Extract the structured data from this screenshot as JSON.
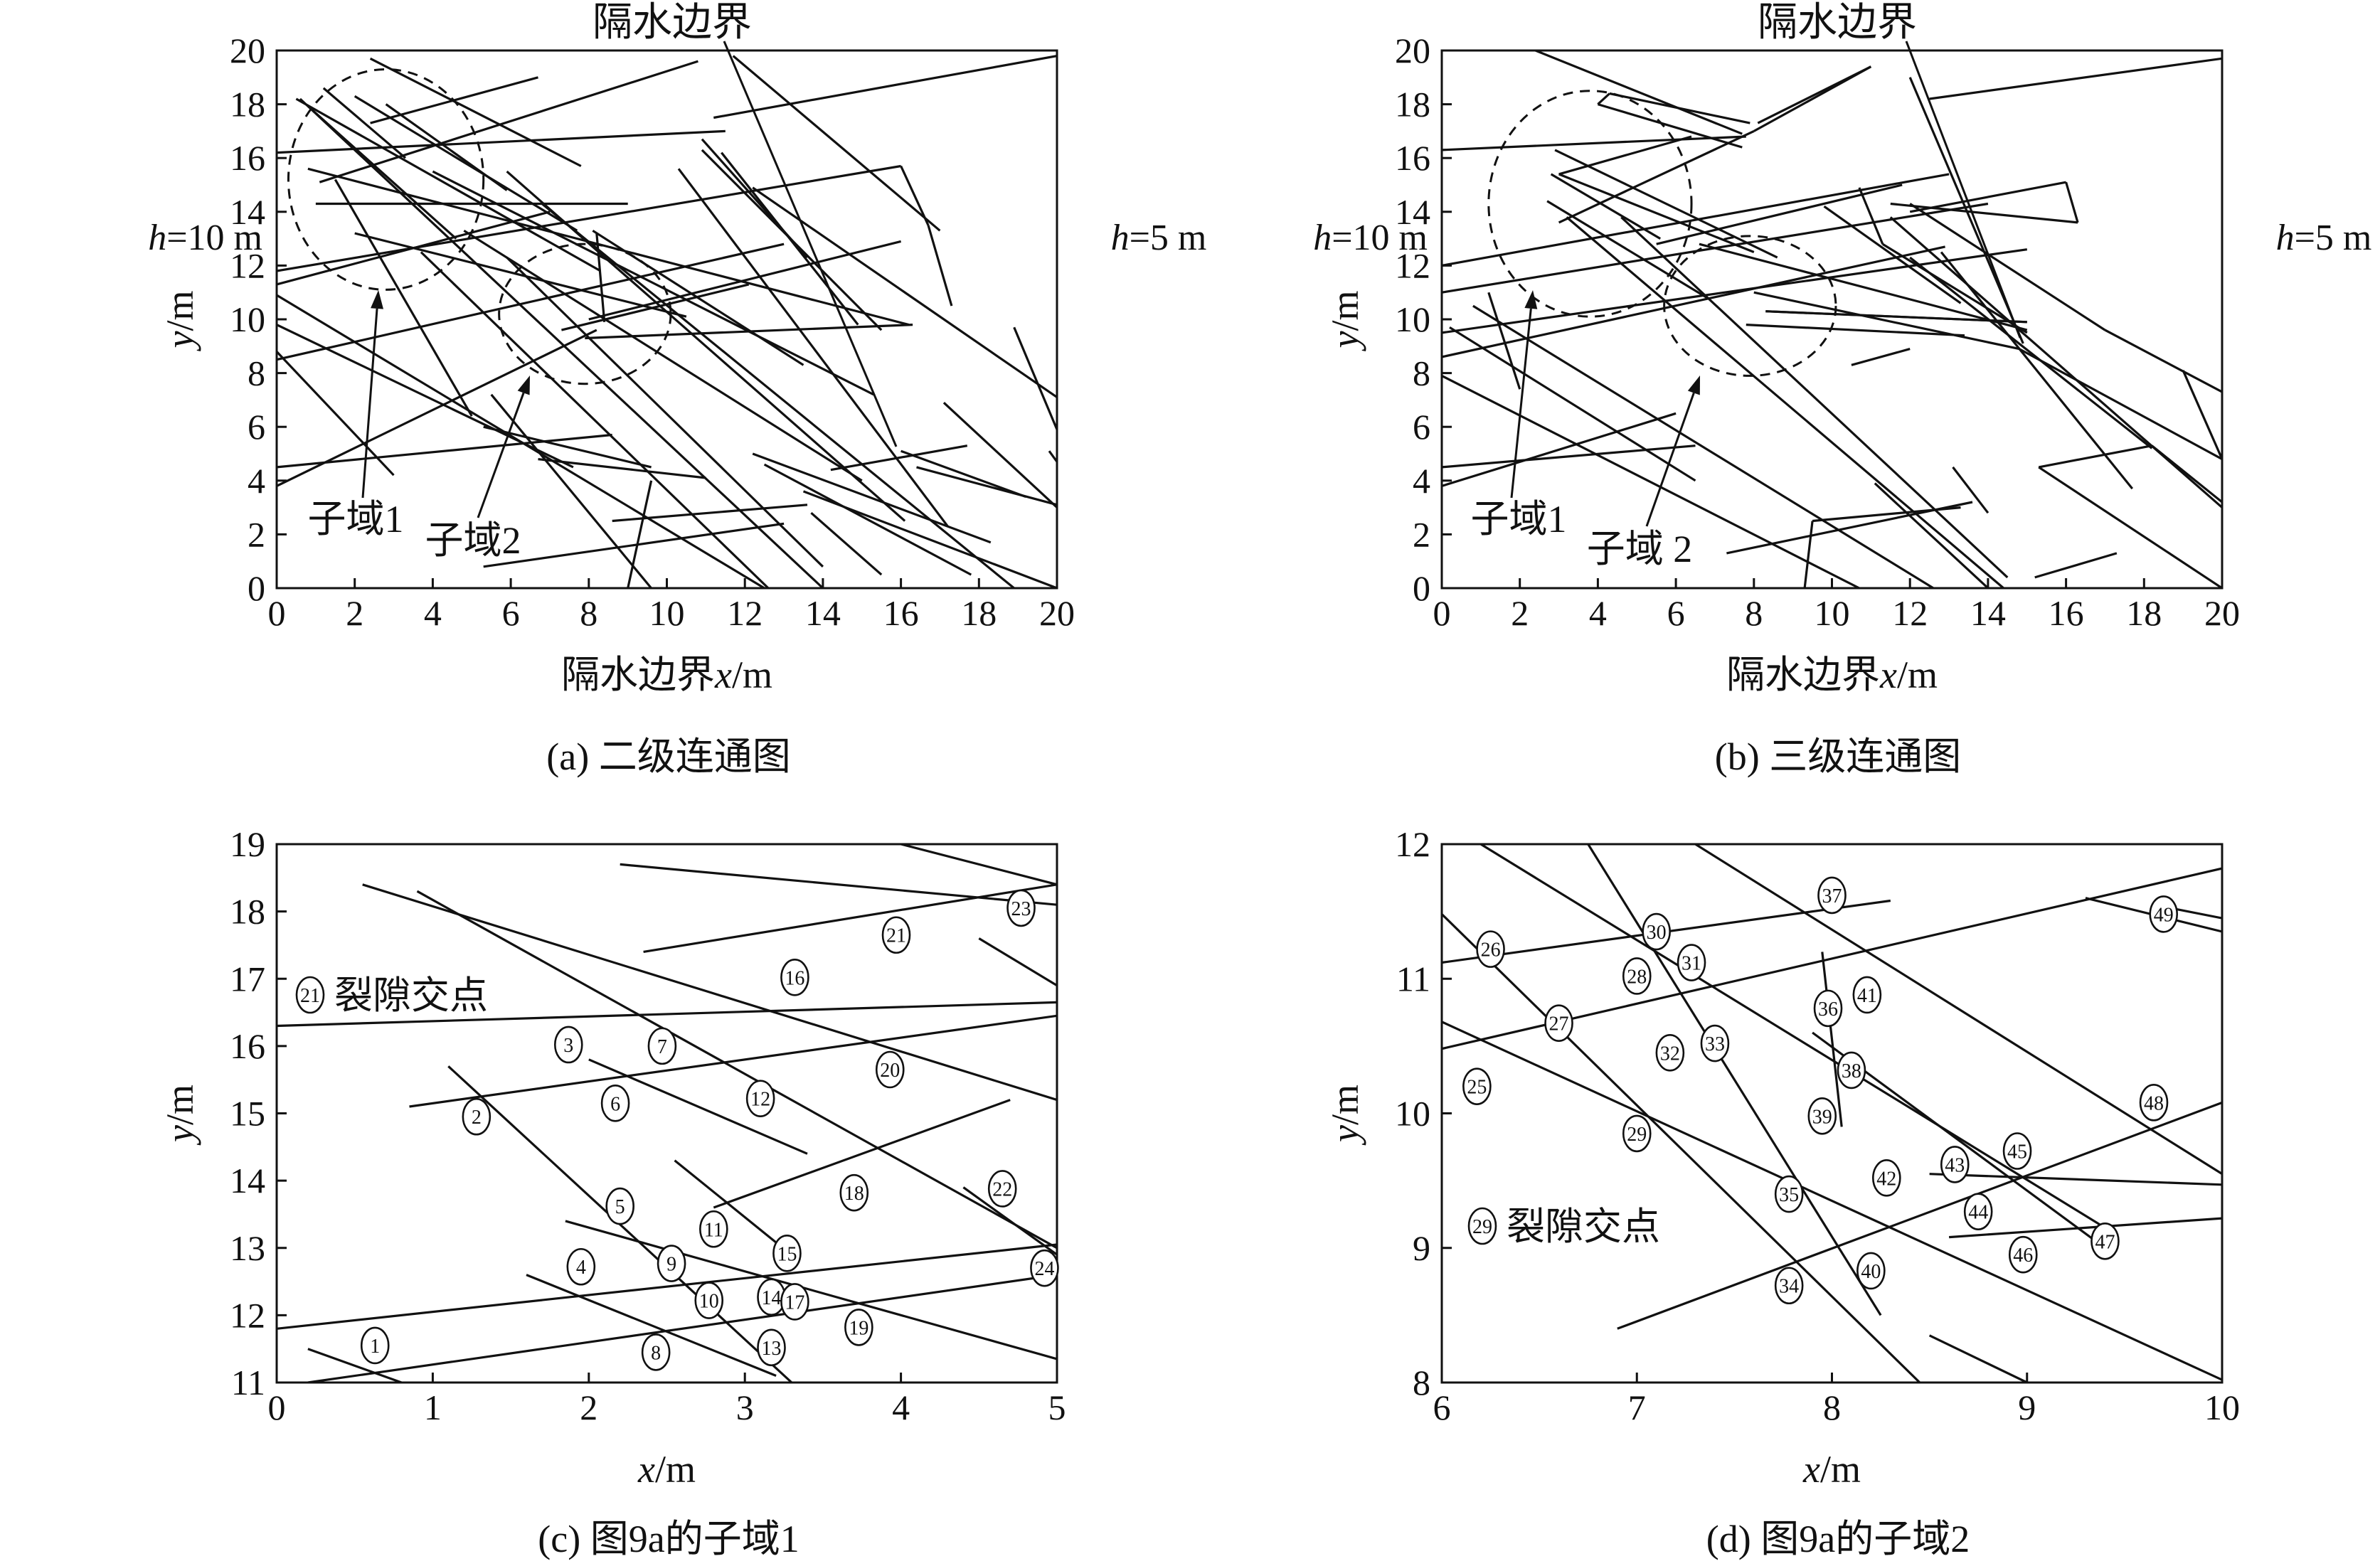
{
  "panels": [
    {
      "id": "a",
      "caption": "(a) 二级连通图",
      "x_axis_label": "隔水边界x/m",
      "y_axis_label": "y/m",
      "x_ticks": [
        0,
        2,
        4,
        6,
        8,
        10,
        12,
        14,
        16,
        18,
        20
      ],
      "y_ticks": [
        0,
        2,
        4,
        6,
        8,
        10,
        12,
        14,
        16,
        18,
        20
      ],
      "top_label": "隔水边界",
      "left_label": "h=10 m",
      "right_label": "h=5 m",
      "subdomain_labels": [
        "子域1",
        "子域2"
      ],
      "subdomains": [
        {
          "name": "子域1",
          "center": [
            2.8,
            15.2
          ],
          "rx": 2.5,
          "ry": 4.1
        },
        {
          "name": "子域2",
          "center": [
            7.9,
            10.2
          ],
          "rx": 2.2,
          "ry": 2.6
        }
      ],
      "segments": [
        [
          0,
          16.2,
          11.5,
          17.0
        ],
        [
          0.5,
          18.2,
          8.3,
          11.8
        ],
        [
          0.9,
          17.8,
          4.6,
          13.0
        ],
        [
          0.6,
          18.2,
          14.0,
          0
        ],
        [
          0.8,
          15.6,
          16.2,
          9.8
        ],
        [
          1.2,
          18.6,
          3.3,
          16.0
        ],
        [
          2.4,
          17.3,
          6.7,
          19.0
        ],
        [
          2.8,
          18.0,
          5.9,
          14.8
        ],
        [
          1.1,
          15.1,
          10.8,
          19.6
        ],
        [
          2.4,
          19.7,
          7.8,
          15.7
        ],
        [
          2.0,
          18.3,
          7.7,
          13.3
        ],
        [
          1.0,
          14.3,
          9.0,
          14.3
        ],
        [
          0,
          11.8,
          16.0,
          15.7
        ],
        [
          0,
          8.5,
          13.0,
          12.8
        ],
        [
          0,
          11.3,
          7.0,
          14.0
        ],
        [
          0,
          10.9,
          12.5,
          0
        ],
        [
          0,
          9.8,
          7.6,
          4.5
        ],
        [
          0,
          8.8,
          3.0,
          4.2
        ],
        [
          0,
          3.8,
          8.2,
          9.6
        ],
        [
          0,
          4.5,
          8.6,
          5.7
        ],
        [
          1.5,
          15.2,
          5.0,
          6.4
        ],
        [
          3.7,
          12.5,
          12.6,
          0
        ],
        [
          2.0,
          13.2,
          10.5,
          10.1
        ],
        [
          5.9,
          12.3,
          14.0,
          0.8
        ],
        [
          5.5,
          7.2,
          9.6,
          0
        ],
        [
          4.0,
          15.5,
          15.3,
          7.2
        ],
        [
          4.8,
          13.3,
          15.0,
          4.0
        ],
        [
          6.8,
          14.3,
          18.9,
          0
        ],
        [
          8.1,
          13.3,
          13.5,
          8.3
        ],
        [
          8.2,
          13.2,
          8.4,
          9.9
        ],
        [
          10.3,
          15.6,
          17.2,
          2.3
        ],
        [
          10.9,
          16.7,
          13.6,
          12.3
        ],
        [
          11.4,
          16.2,
          14.9,
          9.8
        ],
        [
          8.0,
          10.0,
          16.0,
          12.9
        ],
        [
          5.9,
          15.5,
          16.1,
          2.5
        ],
        [
          7.3,
          9.6,
          12.1,
          11.3
        ],
        [
          7.9,
          9.3,
          16.3,
          9.8
        ],
        [
          10.9,
          16.3,
          15.5,
          9.6
        ],
        [
          11.2,
          17.5,
          20.0,
          19.8
        ],
        [
          11.7,
          19.8,
          17.0,
          13.3
        ],
        [
          12.2,
          14.9,
          20.0,
          7.1
        ],
        [
          12.2,
          5.0,
          18.3,
          1.7
        ],
        [
          12.5,
          4.6,
          17.8,
          0.5
        ],
        [
          13.5,
          3.6,
          20.0,
          0
        ],
        [
          14.2,
          4.4,
          17.7,
          5.3
        ],
        [
          16.0,
          5.1,
          19.2,
          3.4
        ],
        [
          16.4,
          4.5,
          20.0,
          3.1
        ],
        [
          17.1,
          6.9,
          20.0,
          3.0
        ],
        [
          16.0,
          15.7,
          16.7,
          13.5
        ],
        [
          16.7,
          13.5,
          17.3,
          10.5
        ],
        [
          5.3,
          6.0,
          9.6,
          4.5
        ],
        [
          6.7,
          4.8,
          11.0,
          4.1
        ],
        [
          8.6,
          2.5,
          13.6,
          3.1
        ],
        [
          5.3,
          0.8,
          13.0,
          2.4
        ],
        [
          9.6,
          4.0,
          9.0,
          0
        ],
        [
          18.9,
          9.7,
          20.0,
          5.9
        ],
        [
          19.8,
          5.1,
          20.0,
          4.7
        ],
        [
          13.7,
          2.8,
          15.5,
          0.5
        ]
      ]
    },
    {
      "id": "b",
      "caption": "(b) 三级连通图",
      "x_axis_label": "隔水边界x/m",
      "y_axis_label": "y/m",
      "x_ticks": [
        0,
        2,
        4,
        6,
        8,
        10,
        12,
        14,
        16,
        18,
        20
      ],
      "y_ticks": [
        0,
        2,
        4,
        6,
        8,
        10,
        12,
        14,
        16,
        18,
        20
      ],
      "top_label": "隔水边界",
      "left_label": "h=10 m",
      "right_label": "h=5 m",
      "subdomain_labels": [
        "子域1",
        "子域 2"
      ],
      "subdomains": [
        {
          "name": "子域1",
          "center": [
            3.8,
            14.3
          ],
          "rx": 2.6,
          "ry": 4.2
        },
        {
          "name": "子域2",
          "center": [
            7.9,
            10.5
          ],
          "rx": 2.2,
          "ry": 2.6
        }
      ],
      "segments": [
        [
          0,
          16.3,
          7.8,
          16.8
        ],
        [
          0,
          12.0,
          13.0,
          15.4
        ],
        [
          0,
          11.0,
          14.0,
          14.3
        ],
        [
          0,
          9.5,
          15.0,
          12.6
        ],
        [
          0,
          8.6,
          12.9,
          12.7
        ],
        [
          1.2,
          11.0,
          2.0,
          7.4
        ],
        [
          3.0,
          15.4,
          6.4,
          16.8
        ],
        [
          3.0,
          15.4,
          8.0,
          12.5
        ],
        [
          2.7,
          14.4,
          6.8,
          10.8
        ],
        [
          3.2,
          13.8,
          14.4,
          0
        ],
        [
          0.8,
          10.5,
          12.6,
          0
        ],
        [
          0,
          7.9,
          10.7,
          0
        ],
        [
          0.2,
          9.7,
          6.5,
          4.0
        ],
        [
          0,
          3.8,
          6.0,
          6.5
        ],
        [
          0,
          4.5,
          6.5,
          5.3
        ],
        [
          2.4,
          20.0,
          7.7,
          16.9
        ],
        [
          4.0,
          18.0,
          7.7,
          16.4
        ],
        [
          4.0,
          18.0,
          4.3,
          18.4
        ],
        [
          4.3,
          18.4,
          7.9,
          17.3
        ],
        [
          2.9,
          16.3,
          8.6,
          12.3
        ],
        [
          2.8,
          15.4,
          5.6,
          13.0
        ],
        [
          3.0,
          13.6,
          8.0,
          17.0
        ],
        [
          8.0,
          17.0,
          11.0,
          19.4
        ],
        [
          11.0,
          19.4,
          8.1,
          17.3
        ],
        [
          5.5,
          12.8,
          11.8,
          15.0
        ],
        [
          6.6,
          12.8,
          15.0,
          9.6
        ],
        [
          7.8,
          9.8,
          13.4,
          9.4
        ],
        [
          8.3,
          10.3,
          15.0,
          9.9
        ],
        [
          8.3,
          10.3,
          15.0,
          9.9
        ],
        [
          9.8,
          14.2,
          13.3,
          10.6
        ],
        [
          10.7,
          14.9,
          11.3,
          12.8
        ],
        [
          11.3,
          12.8,
          15.0,
          9.5
        ],
        [
          12.0,
          14.0,
          16.0,
          15.1
        ],
        [
          16.0,
          15.1,
          16.3,
          13.6
        ],
        [
          16.3,
          13.6,
          11.5,
          14.3
        ],
        [
          12.5,
          18.2,
          20.0,
          19.7
        ],
        [
          12.0,
          19.0,
          14.9,
          9.1
        ],
        [
          12.0,
          14.3,
          17.0,
          9.6
        ],
        [
          17.0,
          9.6,
          20.0,
          7.3
        ],
        [
          11.5,
          13.8,
          20.0,
          3.0
        ],
        [
          12.0,
          12.3,
          18.2,
          5.2
        ],
        [
          12.8,
          12.5,
          17.7,
          3.7
        ],
        [
          4.6,
          13.8,
          14.5,
          0.4
        ],
        [
          8.0,
          11.0,
          14.8,
          8.9
        ],
        [
          14.8,
          8.9,
          20.0,
          4.8
        ],
        [
          19.0,
          8.1,
          20.0,
          4.8
        ],
        [
          15.3,
          4.5,
          20.0,
          0
        ],
        [
          15.3,
          4.5,
          18.2,
          5.3
        ],
        [
          18.2,
          5.3,
          20.0,
          3.2
        ],
        [
          9.5,
          2.5,
          13.3,
          3.0
        ],
        [
          9.3,
          0,
          9.5,
          2.5
        ],
        [
          7.3,
          1.3,
          13.6,
          3.2
        ],
        [
          13.1,
          4.5,
          14.0,
          2.8
        ],
        [
          11.1,
          3.9,
          14.0,
          0
        ],
        [
          15.2,
          0.4,
          17.3,
          1.3
        ],
        [
          10.5,
          8.3,
          12.0,
          8.9
        ]
      ]
    },
    {
      "id": "c",
      "caption": "(c) 图9a的子域1",
      "x_axis_label": "x/m",
      "y_axis_label": "y/m",
      "x_ticks": [
        0,
        1,
        2,
        3,
        4,
        5
      ],
      "y_ticks": [
        11,
        12,
        13,
        14,
        15,
        16,
        17,
        18,
        19
      ],
      "legend_symbol": "21",
      "legend_text": "裂隙交点",
      "segments": [
        [
          0,
          16.3,
          5.0,
          16.65
        ],
        [
          0,
          11.8,
          5.0,
          13.05
        ],
        [
          0.2,
          11.0,
          5.0,
          12.6
        ],
        [
          0.2,
          11.5,
          0.8,
          11.0
        ],
        [
          0.55,
          18.4,
          5.0,
          15.2
        ],
        [
          0.9,
          18.3,
          5.0,
          13.0
        ],
        [
          0.85,
          15.1,
          5.0,
          16.45
        ],
        [
          1.1,
          15.7,
          3.3,
          11.0
        ],
        [
          1.85,
          13.4,
          5.0,
          11.35
        ],
        [
          1.6,
          12.6,
          3.2,
          11.1
        ],
        [
          2.55,
          14.3,
          3.35,
          12.8
        ],
        [
          2.8,
          13.6,
          4.7,
          15.2
        ],
        [
          2.2,
          18.7,
          5.0,
          18.1
        ],
        [
          2.35,
          17.4,
          5.0,
          18.4
        ],
        [
          4.0,
          19.0,
          5.0,
          18.4
        ],
        [
          4.5,
          17.6,
          5.0,
          16.9
        ],
        [
          4.4,
          13.9,
          5.0,
          12.9
        ],
        [
          2.0,
          15.8,
          3.4,
          14.4
        ]
      ],
      "nodes": [
        {
          "id": "1",
          "x": 0.63,
          "y": 11.55
        },
        {
          "id": "2",
          "x": 1.28,
          "y": 14.95
        },
        {
          "id": "3",
          "x": 1.87,
          "y": 16.02
        },
        {
          "id": "4",
          "x": 1.95,
          "y": 12.72
        },
        {
          "id": "5",
          "x": 2.2,
          "y": 13.62
        },
        {
          "id": "6",
          "x": 2.17,
          "y": 15.15
        },
        {
          "id": "7",
          "x": 2.47,
          "y": 16.0
        },
        {
          "id": "8",
          "x": 2.43,
          "y": 11.45
        },
        {
          "id": "9",
          "x": 2.53,
          "y": 12.77
        },
        {
          "id": "10",
          "x": 2.77,
          "y": 12.22
        },
        {
          "id": "11",
          "x": 2.8,
          "y": 13.28
        },
        {
          "id": "12",
          "x": 3.1,
          "y": 15.22
        },
        {
          "id": "13",
          "x": 3.17,
          "y": 11.52
        },
        {
          "id": "14",
          "x": 3.17,
          "y": 12.27
        },
        {
          "id": "15",
          "x": 3.27,
          "y": 12.92
        },
        {
          "id": "16",
          "x": 3.32,
          "y": 17.02
        },
        {
          "id": "17",
          "x": 3.32,
          "y": 12.2
        },
        {
          "id": "18",
          "x": 3.7,
          "y": 13.82
        },
        {
          "id": "19",
          "x": 3.73,
          "y": 11.82
        },
        {
          "id": "20",
          "x": 3.93,
          "y": 15.65
        },
        {
          "id": "21",
          "x": 3.97,
          "y": 17.65
        },
        {
          "id": "22",
          "x": 4.65,
          "y": 13.88
        },
        {
          "id": "23",
          "x": 4.77,
          "y": 18.05
        },
        {
          "id": "24",
          "x": 4.92,
          "y": 12.7
        }
      ]
    },
    {
      "id": "d",
      "caption": "(d) 图9a的子域2",
      "x_axis_label": "x/m",
      "y_axis_label": "y/m",
      "x_ticks": [
        6,
        7,
        8,
        9,
        10
      ],
      "y_ticks": [
        8,
        9,
        10,
        11,
        12
      ],
      "legend_symbol": "29",
      "legend_text": "裂隙交点",
      "segments": [
        [
          6.0,
          11.12,
          8.3,
          11.58
        ],
        [
          6.0,
          10.48,
          10.0,
          11.82
        ],
        [
          6.0,
          11.48,
          8.45,
          8.0
        ],
        [
          6.0,
          10.68,
          10.0,
          8.02
        ],
        [
          6.2,
          12.0,
          9.4,
          9.15
        ],
        [
          6.75,
          12.0,
          8.25,
          8.5
        ],
        [
          7.3,
          12.0,
          10.0,
          9.55
        ],
        [
          6.9,
          8.4,
          10.0,
          10.08
        ],
        [
          7.9,
          10.6,
          9.4,
          9.0
        ],
        [
          7.95,
          11.2,
          8.05,
          9.9
        ],
        [
          8.5,
          9.55,
          10.0,
          9.47
        ],
        [
          8.6,
          9.08,
          10.0,
          9.22
        ],
        [
          8.5,
          8.35,
          9.0,
          8.0
        ],
        [
          9.3,
          11.6,
          10.0,
          11.35
        ],
        [
          9.65,
          11.55,
          10.0,
          11.45
        ]
      ],
      "nodes": [
        {
          "id": "25",
          "x": 6.18,
          "y": 10.2
        },
        {
          "id": "26",
          "x": 6.25,
          "y": 11.22
        },
        {
          "id": "27",
          "x": 6.6,
          "y": 10.67
        },
        {
          "id": "28",
          "x": 7.0,
          "y": 11.02
        },
        {
          "id": "29",
          "x": 7.0,
          "y": 9.85
        },
        {
          "id": "30",
          "x": 7.1,
          "y": 11.35
        },
        {
          "id": "31",
          "x": 7.28,
          "y": 11.12
        },
        {
          "id": "32",
          "x": 7.17,
          "y": 10.45
        },
        {
          "id": "33",
          "x": 7.4,
          "y": 10.52
        },
        {
          "id": "34",
          "x": 7.78,
          "y": 8.72
        },
        {
          "id": "35",
          "x": 7.78,
          "y": 9.4
        },
        {
          "id": "36",
          "x": 7.98,
          "y": 10.78
        },
        {
          "id": "37",
          "x": 8.0,
          "y": 11.62
        },
        {
          "id": "38",
          "x": 8.1,
          "y": 10.32
        },
        {
          "id": "39",
          "x": 7.95,
          "y": 9.98
        },
        {
          "id": "40",
          "x": 8.2,
          "y": 8.83
        },
        {
          "id": "41",
          "x": 8.18,
          "y": 10.88
        },
        {
          "id": "42",
          "x": 8.28,
          "y": 9.52
        },
        {
          "id": "43",
          "x": 8.63,
          "y": 9.62
        },
        {
          "id": "44",
          "x": 8.75,
          "y": 9.27
        },
        {
          "id": "45",
          "x": 8.95,
          "y": 9.72
        },
        {
          "id": "46",
          "x": 8.98,
          "y": 8.95
        },
        {
          "id": "47",
          "x": 9.4,
          "y": 9.05
        },
        {
          "id": "48",
          "x": 9.65,
          "y": 10.08
        },
        {
          "id": "49",
          "x": 9.7,
          "y": 11.48
        }
      ]
    }
  ]
}
